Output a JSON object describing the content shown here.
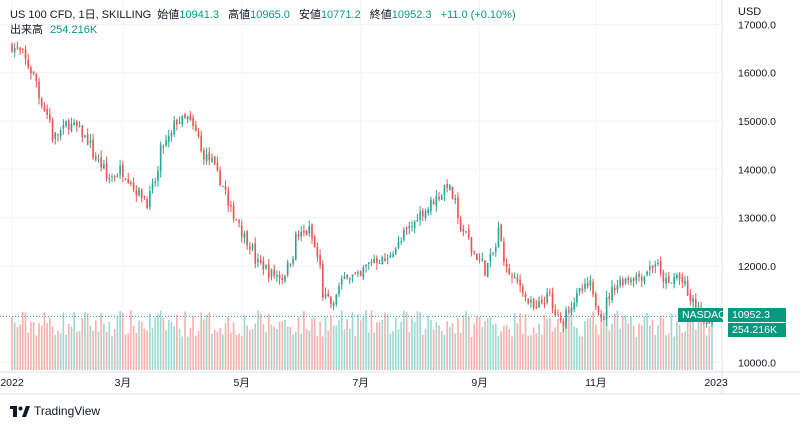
{
  "header": {
    "symbol": "US 100 CFD, 1日, SKILLING",
    "open_label": "始値",
    "open_value": "10941.3",
    "high_label": "高値",
    "high_value": "10965.0",
    "low_label": "安値",
    "low_value": "10771.2",
    "close_label": "終値",
    "close_value": "10952.3",
    "change": "+11.0 (+0.10%)",
    "volume_label": "出来高",
    "volume_value": "254.216K",
    "currency": "USD"
  },
  "price_tags": {
    "symbol_tag": "NASDAQ",
    "price_tag": "10952.3",
    "volume_tag": "254.216K"
  },
  "footer": {
    "brand": "TradingView"
  },
  "colors": {
    "up": "#26a69a",
    "down": "#ef5350",
    "up_volume": "#9ed8d1",
    "down_volume": "#f9b1ae",
    "grid": "#f0f3fa",
    "text": "#131722",
    "accent": "#089981"
  },
  "chart_data": {
    "type": "candlestick",
    "x_tick_labels": [
      "2022",
      "3月",
      "5月",
      "7月",
      "9月",
      "11月",
      "2023"
    ],
    "y_ticks": [
      10000,
      11000,
      12000,
      13000,
      14000,
      15000,
      16000,
      17000
    ],
    "y_tick_labels": [
      "10000.0",
      "11000.0",
      "12000.0",
      "13000.0",
      "14000.0",
      "15000.0",
      "16000.0",
      "17000.0"
    ],
    "ylim": [
      9800,
      17300
    ],
    "last_price": 10952.3,
    "last_volume": "254.216K",
    "price_anchors": [
      [
        "2022-01-03",
        16550
      ],
      [
        "2022-01-10",
        16250
      ],
      [
        "2022-01-17",
        15500
      ],
      [
        "2022-01-24",
        14650
      ],
      [
        "2022-01-31",
        14950
      ],
      [
        "2022-02-07",
        14800
      ],
      [
        "2022-02-14",
        14300
      ],
      [
        "2022-02-21",
        13800
      ],
      [
        "2022-02-28",
        14000
      ],
      [
        "2022-03-07",
        13600
      ],
      [
        "2022-03-14",
        13300
      ],
      [
        "2022-03-21",
        14400
      ],
      [
        "2022-03-29",
        15000
      ],
      [
        "2022-04-04",
        15050
      ],
      [
        "2022-04-11",
        14350
      ],
      [
        "2022-04-18",
        14000
      ],
      [
        "2022-04-25",
        13200
      ],
      [
        "2022-05-02",
        12700
      ],
      [
        "2022-05-09",
        12100
      ],
      [
        "2022-05-16",
        11850
      ],
      [
        "2022-05-23",
        11750
      ],
      [
        "2022-05-30",
        12600
      ],
      [
        "2022-06-06",
        12750
      ],
      [
        "2022-06-13",
        11400
      ],
      [
        "2022-06-17",
        11150
      ],
      [
        "2022-06-24",
        11850
      ],
      [
        "2022-07-01",
        11750
      ],
      [
        "2022-07-08",
        12150
      ],
      [
        "2022-07-15",
        12100
      ],
      [
        "2022-07-22",
        12500
      ],
      [
        "2022-08-01",
        13050
      ],
      [
        "2022-08-08",
        13300
      ],
      [
        "2022-08-16",
        13700
      ],
      [
        "2022-08-22",
        12900
      ],
      [
        "2022-08-29",
        12300
      ],
      [
        "2022-09-05",
        11900
      ],
      [
        "2022-09-12",
        12750
      ],
      [
        "2022-09-15",
        11900
      ],
      [
        "2022-09-22",
        11600
      ],
      [
        "2022-09-30",
        11050
      ],
      [
        "2022-10-07",
        11400
      ],
      [
        "2022-10-13",
        10800
      ],
      [
        "2022-10-21",
        11350
      ],
      [
        "2022-10-28",
        11600
      ],
      [
        "2022-11-04",
        10950
      ],
      [
        "2022-11-10",
        11600
      ],
      [
        "2022-11-17",
        11750
      ],
      [
        "2022-11-25",
        11800
      ],
      [
        "2022-12-01",
        12050
      ],
      [
        "2022-12-08",
        11600
      ],
      [
        "2022-12-13",
        11800
      ],
      [
        "2022-12-20",
        11300
      ],
      [
        "2022-12-28",
        10850
      ],
      [
        "2022-12-30",
        10952
      ]
    ]
  }
}
